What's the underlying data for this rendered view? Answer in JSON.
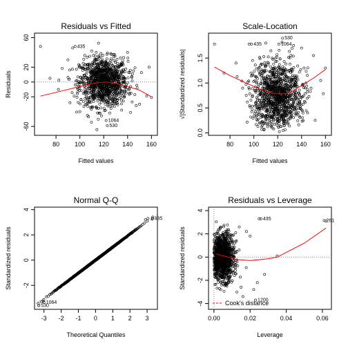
{
  "chart_data": [
    {
      "type": "scatter",
      "title": "Residuals vs Fitted",
      "xlabel": "Fitted values",
      "ylabel": "Residuals",
      "xlim": [
        62,
        165
      ],
      "ylim": [
        -72,
        66
      ],
      "xticks": [
        80,
        100,
        120,
        140,
        160
      ],
      "xtick_labels": [
        "80",
        "100",
        "120",
        "140",
        "160"
      ],
      "yticks": [
        -60,
        -20,
        0,
        20,
        60
      ],
      "ytick_labels": [
        "-60",
        "-20",
        "0",
        "20",
        "60"
      ],
      "reference_line": {
        "orientation": "horizontal",
        "value": 0,
        "style": "dotted"
      },
      "smoother": {
        "color": "#ff0000",
        "x": [
          67,
          80,
          95,
          105,
          115,
          122,
          130,
          140,
          150,
          160
        ],
        "y": [
          -19,
          -14,
          -8,
          -4,
          -1,
          0,
          -2,
          -6,
          -11,
          -20
        ]
      },
      "cloud": {
        "center": [
          120,
          0
        ],
        "spread": [
          10,
          16
        ],
        "count": 1150
      },
      "points": [
        [
          67,
          48
        ],
        [
          94,
          46
        ],
        [
          156,
          -19
        ],
        [
          160,
          -21
        ],
        [
          148,
          -8
        ],
        [
          145,
          15
        ],
        [
          82,
          -10
        ],
        [
          158,
          20
        ],
        [
          90,
          30
        ],
        [
          140,
          40
        ],
        [
          100,
          -40
        ],
        [
          135,
          -38
        ],
        [
          110,
          42
        ],
        [
          150,
          -30
        ],
        [
          75,
          5
        ]
      ],
      "labeled_points": [
        {
          "label": "435",
          "x": 96,
          "y": 48
        },
        {
          "label": "1064",
          "x": 122,
          "y": -52
        },
        {
          "label": "530",
          "x": 123,
          "y": -59
        }
      ]
    },
    {
      "type": "scatter",
      "title": "Scale-Location",
      "xlabel": "Fitted values",
      "ylabel": "√|Standardized residuals|",
      "xlim": [
        62,
        165
      ],
      "ylim": [
        -0.05,
        2.0
      ],
      "xticks": [
        80,
        100,
        120,
        140,
        160
      ],
      "xtick_labels": [
        "80",
        "100",
        "120",
        "140",
        "160"
      ],
      "yticks": [
        0,
        0.5,
        1.0,
        1.5
      ],
      "ytick_labels": [
        "0.0",
        "0.5",
        "1.0",
        "1.5"
      ],
      "smoother": {
        "color": "#ff0000",
        "x": [
          67,
          80,
          95,
          105,
          115,
          122,
          130,
          140,
          150,
          160
        ],
        "y": [
          1.32,
          1.15,
          0.98,
          0.88,
          0.8,
          0.78,
          0.8,
          0.95,
          1.1,
          1.27
        ]
      },
      "cloud": {
        "center": [
          120,
          0.8
        ],
        "spread": [
          10,
          0.33
        ],
        "count": 1150
      },
      "points": [
        [
          67,
          1.78
        ],
        [
          96,
          1.78
        ],
        [
          156,
          1.05
        ],
        [
          160,
          1.3
        ],
        [
          150,
          1.55
        ],
        [
          85,
          1.4
        ],
        [
          140,
          1.7
        ],
        [
          110,
          1.8
        ],
        [
          75,
          1.2
        ],
        [
          145,
          0.4
        ]
      ],
      "labeled_points": [
        {
          "label": "530",
          "x": 124,
          "y": 1.9
        },
        {
          "label": "435",
          "x": 98,
          "y": 1.78
        },
        {
          "label": "1064",
          "x": 121,
          "y": 1.78
        }
      ]
    },
    {
      "type": "scatter",
      "title": "Normal Q-Q",
      "xlabel": "Theoretical Quantiles",
      "ylabel": "Standardized residuals",
      "xlim": [
        -3.55,
        3.6
      ],
      "ylim": [
        -3.9,
        4.2
      ],
      "xticks": [
        -3,
        -2,
        -1,
        0,
        1,
        2,
        3
      ],
      "xtick_labels": [
        "-3",
        "-2",
        "-1",
        "0",
        "1",
        "2",
        "3"
      ],
      "yticks": [
        -2,
        0,
        2,
        4
      ],
      "ytick_labels": [
        "-2",
        "0",
        "2",
        "4"
      ],
      "reference_line": {
        "x": [
          -3.55,
          3.6
        ],
        "y": [
          -3.55,
          3.6
        ],
        "style": "dotted"
      },
      "sample_count": 1150,
      "points": [
        [
          -3.3,
          -3.6
        ],
        [
          -3.15,
          -3.3
        ],
        [
          -3.05,
          -3.25
        ],
        [
          2.9,
          3.2
        ],
        [
          3.05,
          3.3
        ],
        [
          3.3,
          3.25
        ]
      ],
      "labeled_points": [
        {
          "label": "435",
          "x": 3.3,
          "y": 3.3
        },
        {
          "label": "1064",
          "x": -3.0,
          "y": -3.35
        },
        {
          "label": "530",
          "x": -3.3,
          "y": -3.6
        }
      ]
    },
    {
      "type": "scatter",
      "title": "Residuals vs Leverage",
      "xlabel": "Leverage",
      "ylabel": "Standardized residuals",
      "xlim": [
        -0.003,
        0.065
      ],
      "ylim": [
        -4.5,
        4.3
      ],
      "xticks": [
        0.0,
        0.02,
        0.04,
        0.06
      ],
      "xtick_labels": [
        "0.00",
        "0.02",
        "0.04",
        "0.06"
      ],
      "yticks": [
        -4,
        -2,
        0,
        2,
        4
      ],
      "ytick_labels": [
        "-4",
        "-2",
        "0",
        "2",
        "4"
      ],
      "reference_line": {
        "orientation": "horizontal",
        "value": 0,
        "style": "dotted"
      },
      "smoother": {
        "color": "#ff0000",
        "x": [
          0.001,
          0.004,
          0.008,
          0.012,
          0.02,
          0.03,
          0.035,
          0.05,
          0.062
        ],
        "y": [
          0.3,
          0.15,
          0.0,
          -0.2,
          -0.3,
          -0.15,
          0.0,
          1.2,
          2.5
        ]
      },
      "cloud": {
        "center": [
          0.005,
          0
        ],
        "spread": [
          0.003,
          1.0
        ],
        "count": 1150
      },
      "points": [
        [
          0.062,
          3.1
        ],
        [
          0.025,
          3.3
        ],
        [
          0.035,
          0.1
        ],
        [
          0.015,
          -2.6
        ],
        [
          0.022,
          -2.8
        ],
        [
          0.018,
          2.2
        ],
        [
          0.02,
          1.8
        ],
        [
          0.028,
          -1.5
        ],
        [
          0.014,
          2.6
        ],
        [
          0.024,
          -2.2
        ],
        [
          0.016,
          -3.4
        ]
      ],
      "labeled_points": [
        {
          "label": "435",
          "x": 0.026,
          "y": 3.3
        },
        {
          "label": "261",
          "x": 0.061,
          "y": 3.15
        },
        {
          "label": "1200",
          "x": 0.023,
          "y": -3.7
        }
      ],
      "legend": {
        "placement": "bottom-left",
        "entries": [
          {
            "label": "Cook's distance",
            "style": "dashed",
            "color": "#ff0000"
          }
        ]
      }
    }
  ]
}
